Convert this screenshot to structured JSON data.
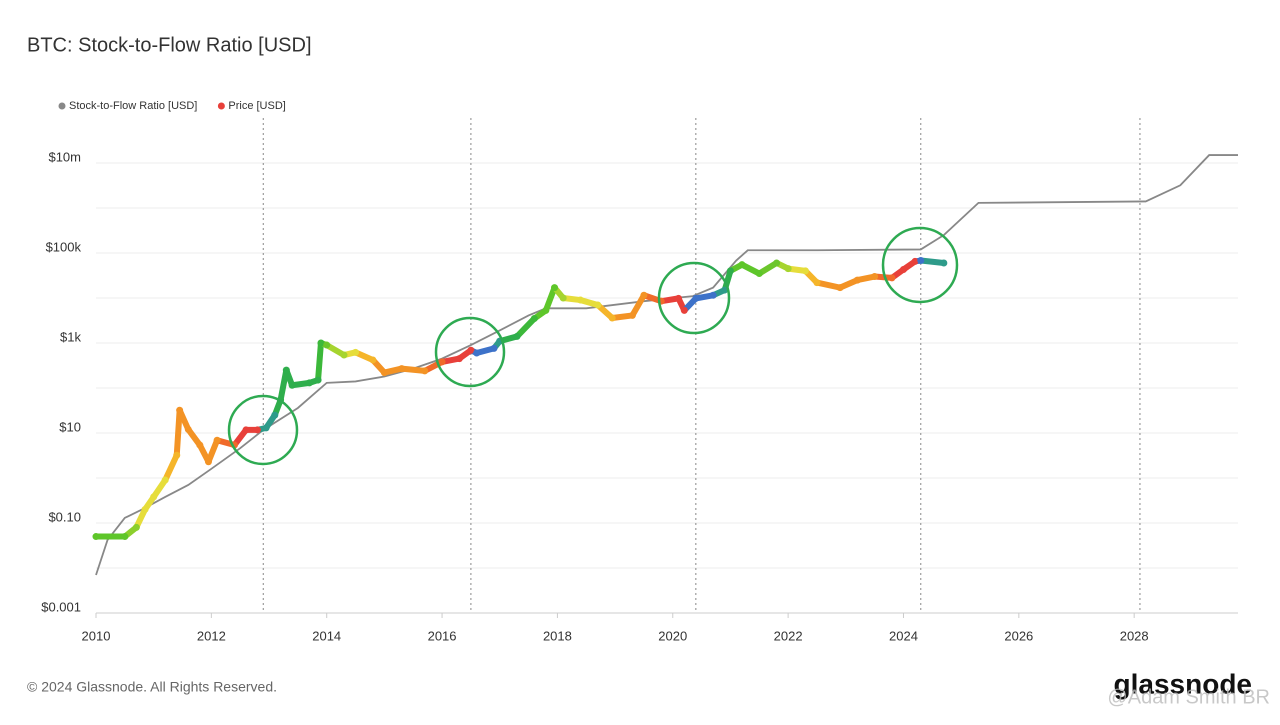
{
  "chart_data": {
    "type": "line",
    "title": "BTC: Stock-to-Flow Ratio [USD]",
    "log_scale": true,
    "grid": true,
    "legend": "top-left",
    "xlim": [
      2010,
      2029.8
    ],
    "xticks": [
      2010,
      2012,
      2014,
      2016,
      2018,
      2020,
      2022,
      2024,
      2026,
      2028
    ],
    "ylim": [
      0.001,
      100000000
    ],
    "yticks": [
      {
        "value": 0.001,
        "label": "$0.001"
      },
      {
        "value": 0.1,
        "label": "$0.10"
      },
      {
        "value": 10,
        "label": "$10"
      },
      {
        "value": 1000,
        "label": "$1k"
      },
      {
        "value": 100000,
        "label": "$100k"
      },
      {
        "value": 10000000,
        "label": "$10m"
      }
    ],
    "y_minor_gridlines": [
      0.01,
      1,
      100,
      10000,
      1000000
    ],
    "halving_lines": [
      2012.9,
      2016.5,
      2020.4,
      2024.3,
      2028.1
    ],
    "series": [
      {
        "name": "Stock-to-Flow Ratio [USD]",
        "color": "#888888",
        "x": [
          2010.0,
          2010.2,
          2010.5,
          2010.8,
          2011.2,
          2011.6,
          2012.0,
          2012.5,
          2012.9,
          2013.5,
          2014.0,
          2014.5,
          2015.0,
          2015.5,
          2016.0,
          2016.5,
          2017.0,
          2017.5,
          2017.8,
          2018.5,
          2019.5,
          2020.35,
          2020.7,
          2021.1,
          2021.3,
          2022.5,
          2024.3,
          2024.7,
          2025.3,
          2028.2,
          2028.8,
          2029.3,
          2029.8
        ],
        "values": [
          0.007,
          0.042,
          0.13,
          0.2,
          0.38,
          0.7,
          1.6,
          4.6,
          11.7,
          36,
          130,
          140,
          180,
          270,
          450,
          900,
          1900,
          4100,
          5900,
          5900,
          8500,
          11000,
          17000,
          68000,
          115000,
          115000,
          120000,
          250000,
          1300000,
          1400000,
          3200000,
          15000000,
          15000000
        ]
      },
      {
        "name": "Price [USD]",
        "color": "#e8403a",
        "x": [
          2010.0,
          2010.5,
          2010.7,
          2010.85,
          2011.0,
          2011.2,
          2011.4,
          2011.45,
          2011.6,
          2011.8,
          2011.95,
          2012.1,
          2012.4,
          2012.6,
          2012.8,
          2012.95,
          2013.1,
          2013.2,
          2013.3,
          2013.4,
          2013.7,
          2013.85,
          2013.9,
          2014.0,
          2014.3,
          2014.5,
          2014.8,
          2015.0,
          2015.3,
          2015.7,
          2016.0,
          2016.3,
          2016.5,
          2016.6,
          2016.9,
          2017.0,
          2017.3,
          2017.6,
          2017.8,
          2017.95,
          2018.1,
          2018.4,
          2018.7,
          2018.95,
          2019.3,
          2019.5,
          2019.8,
          2020.1,
          2020.2,
          2020.4,
          2020.7,
          2020.9,
          2021.0,
          2021.2,
          2021.5,
          2021.8,
          2022.0,
          2022.3,
          2022.5,
          2022.9,
          2023.2,
          2023.5,
          2023.8,
          2024.0,
          2024.2,
          2024.3,
          2024.7
        ],
        "values": [
          0.05,
          0.05,
          0.08,
          0.2,
          0.38,
          0.9,
          3.2,
          32,
          12,
          5.4,
          2.3,
          6.9,
          5.4,
          11.7,
          11.7,
          13,
          25,
          54,
          250,
          115,
          130,
          150,
          1000,
          900,
          540,
          620,
          420,
          220,
          270,
          240,
          380,
          450,
          690,
          600,
          760,
          1100,
          1400,
          3500,
          5300,
          17000,
          10000,
          9000,
          7000,
          3600,
          4100,
          11500,
          8500,
          9800,
          5300,
          9800,
          11500,
          15000,
          40000,
          55000,
          35000,
          60000,
          45000,
          40000,
          22000,
          17000,
          25000,
          30000,
          28000,
          43000,
          65000,
          68000,
          60000
        ],
        "point_colors": [
          "#5ec62a",
          "#5ec62a",
          "#8ccf2d",
          "#e6dd3b",
          "#e6dd3b",
          "#e6dd3b",
          "#f5b52a",
          "#f39325",
          "#f39325",
          "#f39325",
          "#f39325",
          "#f39325",
          "#f06a2a",
          "#e8403a",
          "#e8403a",
          "#2e9b8a",
          "#2e9b8a",
          "#2fae4c",
          "#2fae4c",
          "#2fae4c",
          "#2fae4c",
          "#2fae4c",
          "#3cb83a",
          "#6cc62c",
          "#a6d42f",
          "#e6dd3b",
          "#f5b52a",
          "#f39325",
          "#f39325",
          "#f39325",
          "#f06a2a",
          "#e8403a",
          "#e8403a",
          "#3d72c9",
          "#3d72c9",
          "#2e9b8a",
          "#2fae4c",
          "#3cb83a",
          "#5ec62a",
          "#5ec62a",
          "#a6d42f",
          "#e6dd3b",
          "#e6dd3b",
          "#f5b52a",
          "#f39325",
          "#f39325",
          "#f06a2a",
          "#e8403a",
          "#e8403a",
          "#3d72c9",
          "#3d72c9",
          "#2e9b8a",
          "#2fae4c",
          "#5ec62a",
          "#5ec62a",
          "#6cc62c",
          "#a6d42f",
          "#e6dd3b",
          "#f5b52a",
          "#f39325",
          "#f39325",
          "#f39325",
          "#f06a2a",
          "#e8403a",
          "#e8403a",
          "#3d72c9",
          "#2e9b8a"
        ]
      }
    ]
  },
  "footer": {
    "copyright": "© 2024 Glassnode. All Rights Reserved.",
    "logo": "glassnode",
    "watermark": "@Adam Smith BR"
  }
}
